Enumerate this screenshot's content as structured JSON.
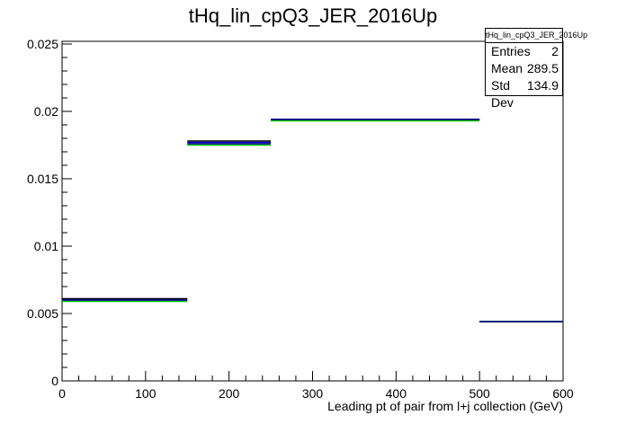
{
  "chart_data": {
    "type": "step",
    "title": "tHq_lin_cpQ3_JER_2016Up",
    "xlabel": "Leading pt of pair from l+j collection (GeV)",
    "ylabel": "",
    "xlim": [
      0,
      600
    ],
    "ylim": [
      0,
      0.0252
    ],
    "x_ticks": [
      0,
      100,
      200,
      300,
      400,
      500,
      600
    ],
    "x_tick_labels": [
      "0",
      "100",
      "200",
      "300",
      "400",
      "500",
      "600"
    ],
    "y_ticks": [
      0,
      0.005,
      0.01,
      0.015,
      0.02,
      0.025
    ],
    "y_tick_labels": [
      "0",
      "0.005",
      "0.01",
      "0.015",
      "0.02",
      "0.025"
    ],
    "bin_edges": [
      0,
      150,
      250,
      500,
      600
    ],
    "series": [
      {
        "color": "#000000",
        "values": [
          0.0061,
          0.0178,
          0.0194,
          0.0044
        ]
      },
      {
        "color": "#0000cc",
        "values": [
          0.006,
          0.0177,
          0.0194,
          0.0044
        ]
      },
      {
        "color": "#00cc00",
        "values": [
          0.0059,
          0.0175,
          0.0193,
          0.0044
        ]
      },
      {
        "color": "#000080",
        "values": [
          0.006,
          0.0176,
          0.0194,
          0.0044
        ]
      }
    ],
    "grid": false
  },
  "stats": {
    "title": "tHq_lin_cpQ3_JER_2016Up",
    "rows": [
      {
        "label": "Entries",
        "value": "2"
      },
      {
        "label": "Mean",
        "value": "289.5"
      },
      {
        "label": "Std Dev",
        "value": "134.9"
      }
    ]
  }
}
